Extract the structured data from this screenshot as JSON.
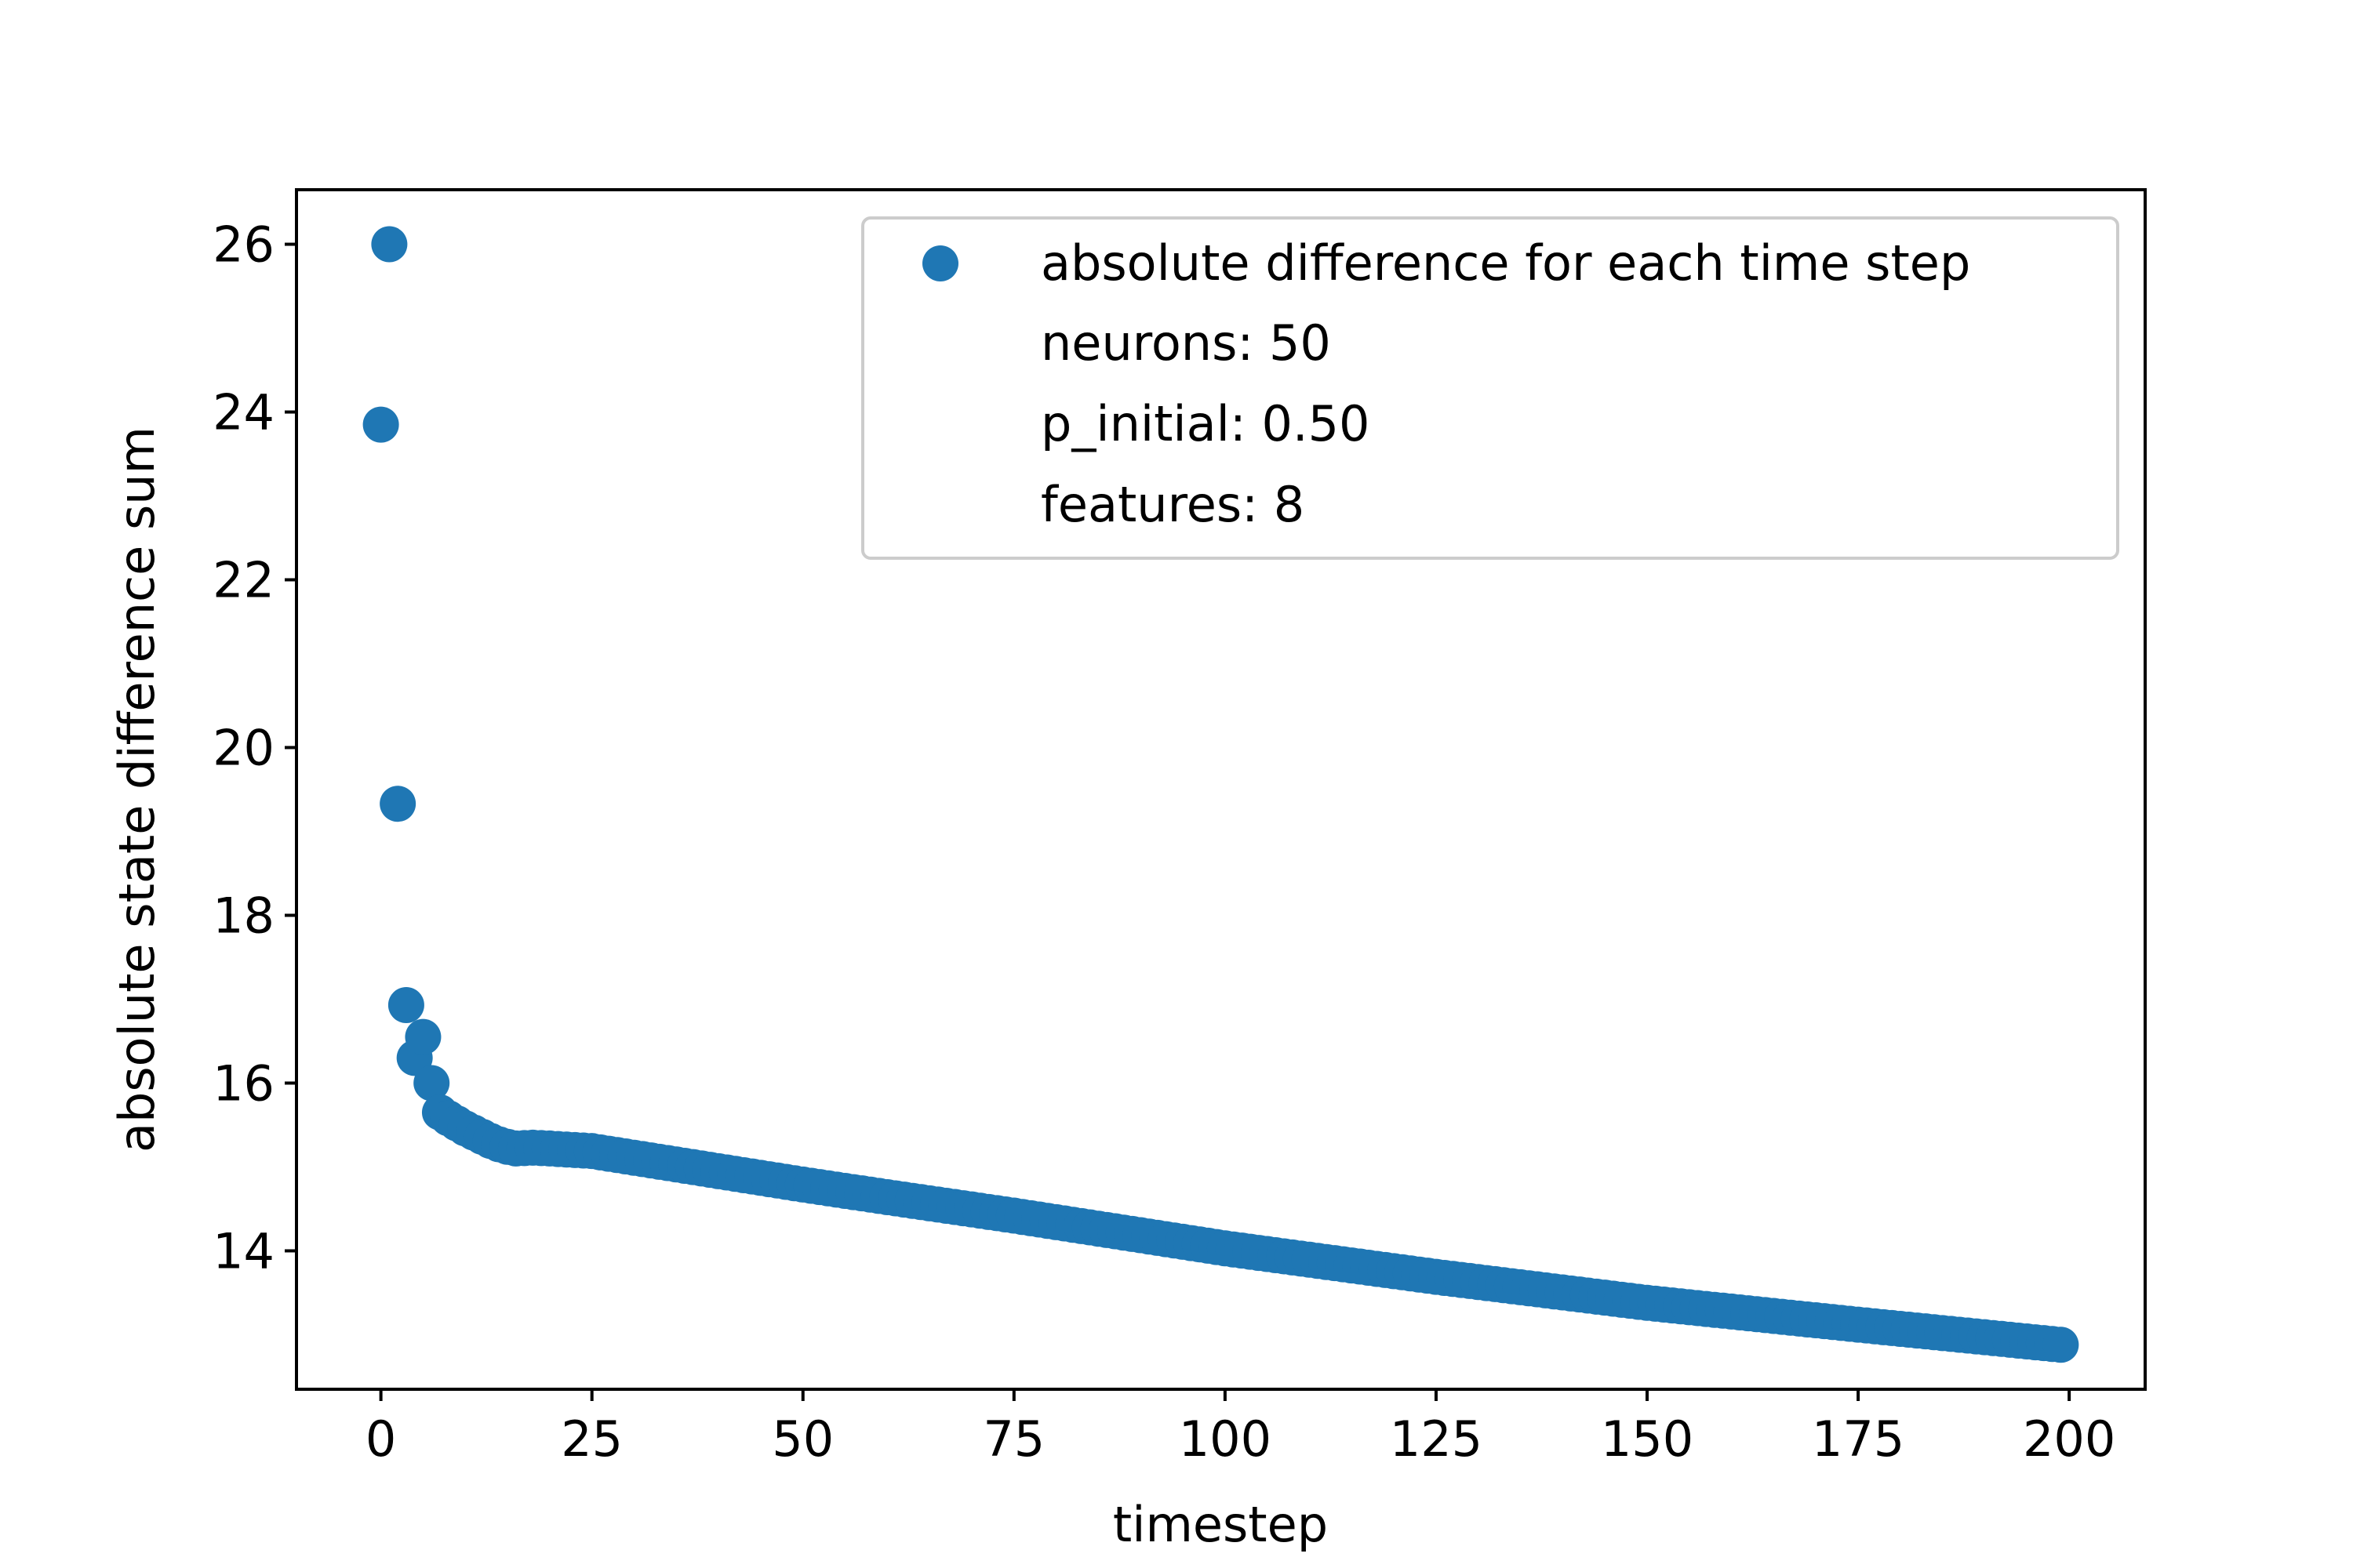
{
  "chart_data": {
    "type": "scatter",
    "xlabel": "timestep",
    "ylabel": "absolute state difference sum",
    "xlim": [
      -10,
      209
    ],
    "ylim": [
      12.35,
      26.65
    ],
    "x_ticks": [
      0,
      25,
      50,
      75,
      100,
      125,
      150,
      175,
      200
    ],
    "y_ticks": [
      14,
      16,
      18,
      20,
      22,
      24,
      26
    ],
    "grid": false,
    "legend_placement": "upper right",
    "legend_entries": [
      "absolute difference for each time step",
      "neurons: 50",
      "p_initial: 0.50",
      "features: 8"
    ],
    "series": [
      {
        "name": "absolute difference for each time step",
        "color": "#1f77b4",
        "x_range": [
          0,
          199
        ],
        "points": [
          [
            0,
            23.85
          ],
          [
            1,
            26.0
          ],
          [
            2,
            19.33
          ],
          [
            3,
            16.93
          ],
          [
            4,
            16.3
          ],
          [
            5,
            16.55
          ],
          [
            6,
            16.0
          ],
          [
            7,
            15.65
          ],
          [
            8,
            15.58
          ],
          [
            9,
            15.52
          ],
          [
            10,
            15.46
          ],
          [
            11,
            15.41
          ],
          [
            12,
            15.36
          ],
          [
            13,
            15.31
          ],
          [
            14,
            15.27
          ],
          [
            15,
            15.24
          ],
          [
            16,
            15.22
          ],
          [
            18,
            15.23
          ],
          [
            20,
            15.22
          ],
          [
            25,
            15.19
          ],
          [
            30,
            15.11
          ],
          [
            40,
            14.95
          ],
          [
            50,
            14.79
          ],
          [
            60,
            14.64
          ],
          [
            75,
            14.42
          ],
          [
            100,
            14.03
          ],
          [
            125,
            13.69
          ],
          [
            150,
            13.38
          ],
          [
            175,
            13.12
          ],
          [
            199,
            12.88
          ]
        ]
      }
    ]
  }
}
